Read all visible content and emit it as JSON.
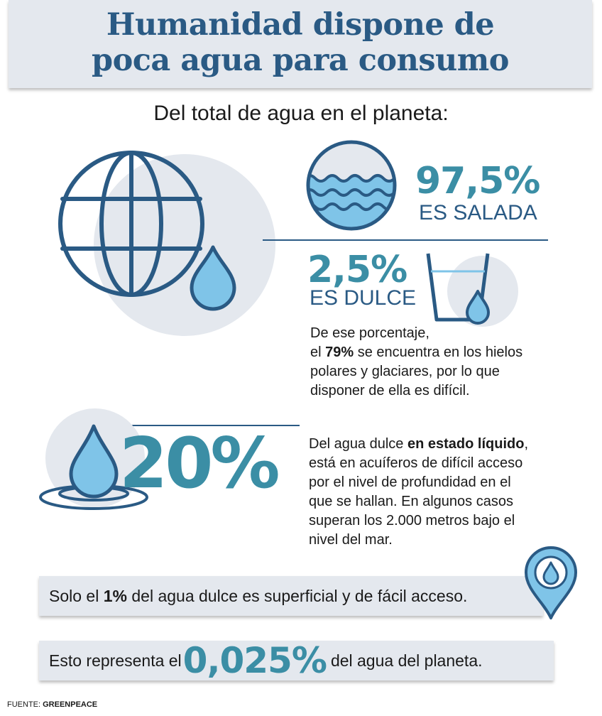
{
  "title": {
    "line1": "Humanidad dispone de",
    "line2": "poca agua para consumo"
  },
  "subtitle": "Del total de agua en el planeta:",
  "salt": {
    "value": "97,5%",
    "label": "ES SALADA",
    "icon": "waves-icon"
  },
  "fresh": {
    "value": "2,5%",
    "label": "ES DULCE",
    "icon": "glass-water-icon"
  },
  "ice_note": {
    "line1": "De ese porcentaje,",
    "pre": "el ",
    "bold": "79%",
    "post": " se encuentra en los hielos",
    "line3": "polares y glaciares, por lo que",
    "line4": "disponer de ella es difícil."
  },
  "liquid": {
    "value": "20%",
    "pre": "Del agua dulce ",
    "bold": "en estado líquido",
    "post": ",",
    "line2": "está en acuíferos de difícil acceso",
    "line3": "por el nivel de profundidad en el",
    "line4": "que se hallan. En algunos casos",
    "line5": "superan los 2.000 metros bajo el",
    "line6": "nivel del mar.",
    "icon": "water-drop-splash-icon"
  },
  "surface": {
    "pre": "Solo el ",
    "bold": "1%",
    "post": " del agua dulce es superficial y de fácil acceso.",
    "icon": "location-pin-drop-icon"
  },
  "represent": {
    "pre": "Esto representa el ",
    "value": "0,025%",
    "post": " del agua del planeta."
  },
  "source": {
    "label": "FUENTE: ",
    "name": "GREENPEACE"
  },
  "globe_icon": "globe-icon",
  "colors": {
    "navy": "#2a5a84",
    "teal": "#3b8ea5",
    "light_blue": "#7fc4e8",
    "panel": "#e4e8ee"
  }
}
